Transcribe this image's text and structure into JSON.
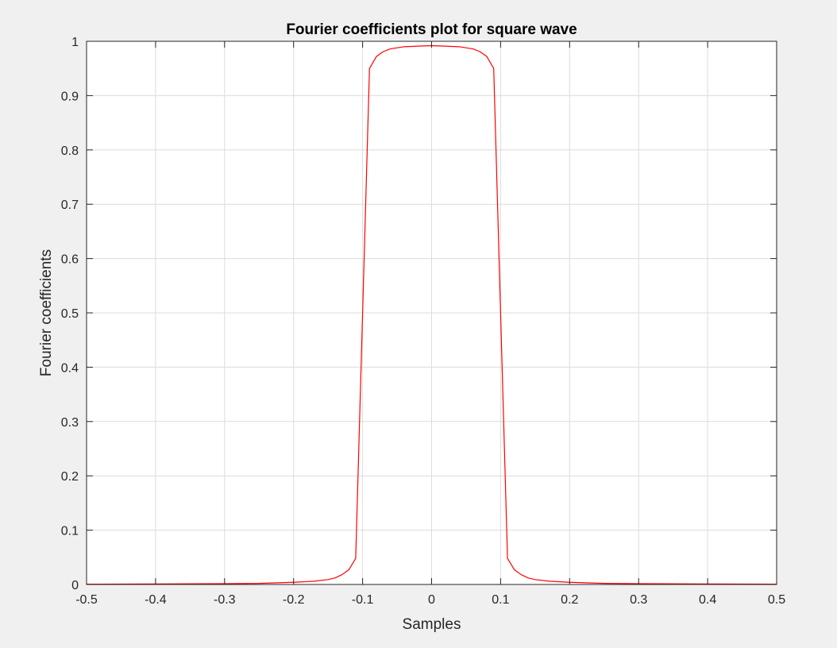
{
  "chart_data": {
    "type": "line",
    "title": "Fourier coefficients plot for square wave",
    "xlabel": "Samples",
    "ylabel": "Fourier coefficients",
    "xlim": [
      -0.5,
      0.5
    ],
    "ylim": [
      0,
      1
    ],
    "xticks": [
      "-0.5",
      "-0.4",
      "-0.3",
      "-0.2",
      "-0.1",
      "0",
      "0.1",
      "0.2",
      "0.3",
      "0.4",
      "0.5"
    ],
    "yticks": [
      "0",
      "0.1",
      "0.2",
      "0.3",
      "0.4",
      "0.5",
      "0.6",
      "0.7",
      "0.8",
      "0.9",
      "1"
    ],
    "grid": true,
    "legend": false,
    "series": [
      {
        "color": "#ff0000",
        "x": [
          -0.5,
          -0.4,
          -0.3,
          -0.25,
          -0.2,
          -0.17,
          -0.15,
          -0.14,
          -0.13,
          -0.12,
          -0.11,
          -0.09,
          -0.08,
          -0.07,
          -0.06,
          -0.05,
          -0.04,
          -0.02,
          0,
          0.02,
          0.04,
          0.05,
          0.06,
          0.07,
          0.08,
          0.09,
          0.11,
          0.12,
          0.13,
          0.14,
          0.15,
          0.17,
          0.2,
          0.25,
          0.3,
          0.4,
          0.5
        ],
        "y": [
          0.0005,
          0.001,
          0.0015,
          0.002,
          0.004,
          0.006,
          0.009,
          0.012,
          0.018,
          0.027,
          0.048,
          0.95,
          0.972,
          0.981,
          0.986,
          0.988,
          0.99,
          0.991,
          0.992,
          0.991,
          0.99,
          0.988,
          0.986,
          0.981,
          0.972,
          0.95,
          0.048,
          0.027,
          0.018,
          0.012,
          0.009,
          0.006,
          0.004,
          0.002,
          0.0015,
          0.001,
          0.0005
        ]
      }
    ]
  }
}
